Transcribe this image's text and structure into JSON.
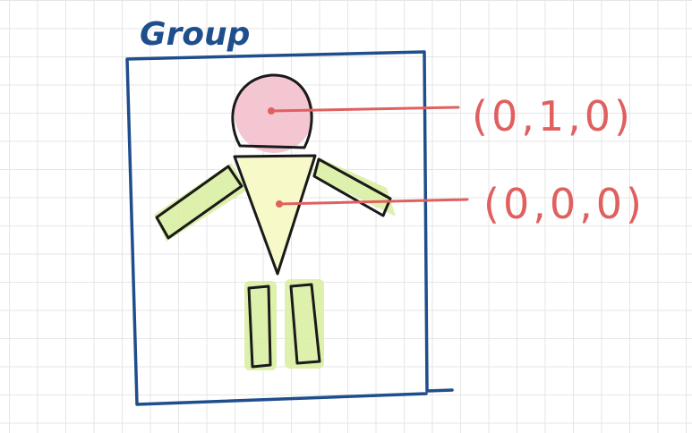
{
  "group_label": "Group",
  "annotations": {
    "head_position": "(0,1,0)",
    "torso_position": "(0,0,0)"
  },
  "colors": {
    "frame_stroke": "#1f4e8c",
    "ink": "#1a1a1a",
    "annotation": "#e06060",
    "head_fill": "#f3c6d2",
    "torso_fill": "#f7f9c8",
    "limb_fill": "#d8ee9e"
  }
}
